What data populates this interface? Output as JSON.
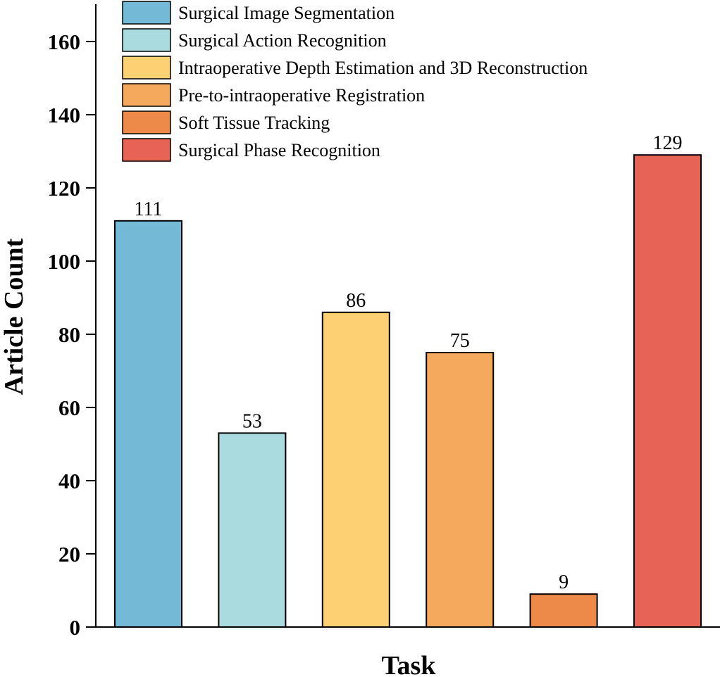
{
  "chart_data": {
    "type": "bar",
    "categories": [
      "Surgical Image Segmentation",
      "Surgical Action Recognition",
      "Intraoperative Depth Estimation and 3D Reconstruction",
      "Pre-to-intraoperative Registration",
      "Soft Tissue Tracking",
      "Surgical Phase Recognition"
    ],
    "values": [
      111,
      53,
      86,
      75,
      9,
      129
    ],
    "colors": [
      "#74BAD6",
      "#AADBDE",
      "#FDD173",
      "#F5A95C",
      "#EE8A49",
      "#E66356"
    ],
    "xlabel": "Task",
    "ylabel": "Article Count",
    "ylim": [
      0,
      170
    ],
    "yticks": [
      0,
      20,
      40,
      60,
      80,
      100,
      120,
      140,
      160
    ],
    "grid": false,
    "legend_position": "top-left"
  }
}
